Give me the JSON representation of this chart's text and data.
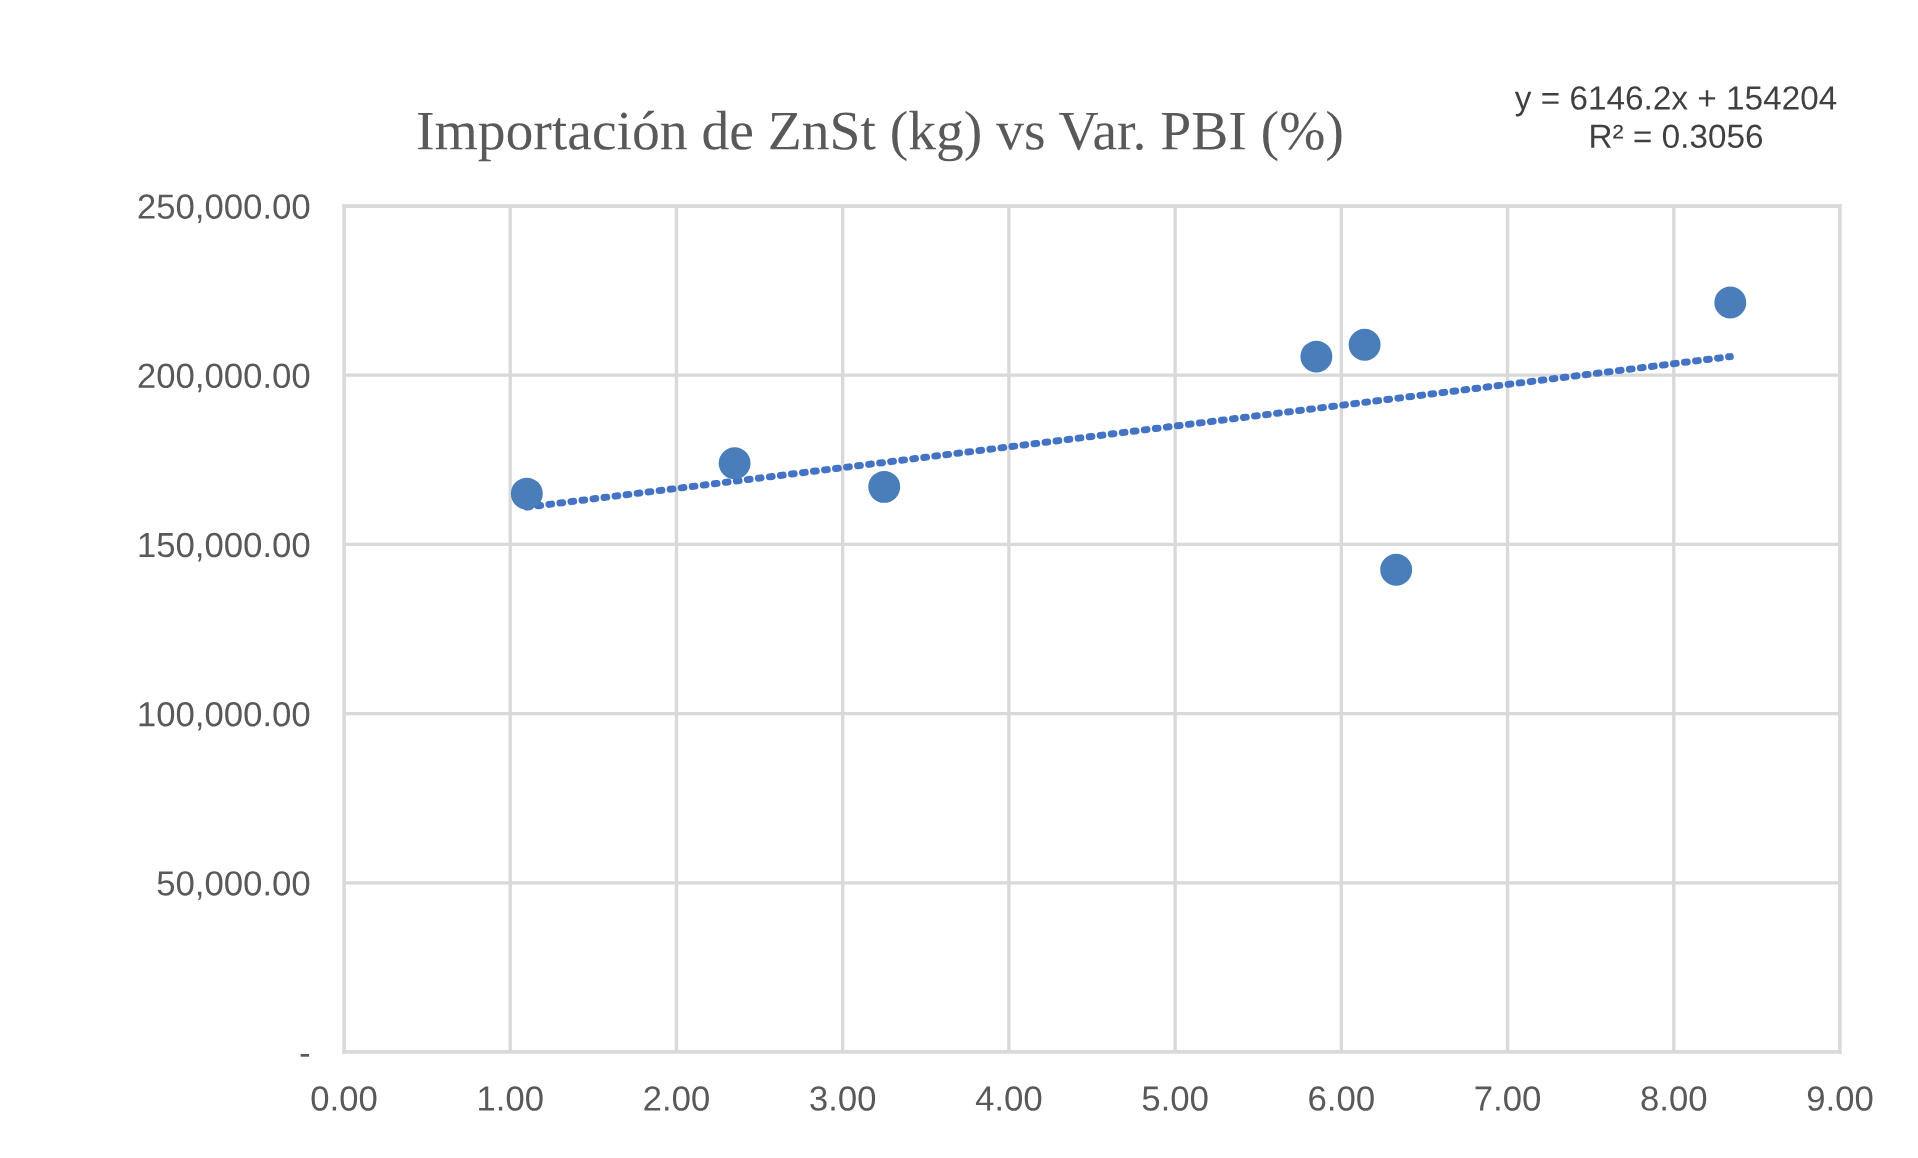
{
  "chart_data": {
    "type": "scatter",
    "title": "Importación de ZnSt (kg) vs Var. PBI (%)",
    "series": [
      {
        "color": "#4a7ebb",
        "marker": "circle",
        "x": [
          1.1,
          2.35,
          3.25,
          5.85,
          6.14,
          6.33,
          8.34
        ],
        "values": [
          165000,
          174000,
          167000,
          205500,
          209000,
          142500,
          221500
        ]
      },
      {
        "type": "line",
        "color": "#4472c4",
        "line_style": "dotted",
        "marker": "none",
        "x": [
          1.1,
          8.34
        ],
        "values": [
          161000,
          205500
        ]
      }
    ],
    "annotations": [
      "y = 6146.2x + 154204\nR² = 0.3056"
    ],
    "xlim": [
      0,
      9
    ],
    "xticks": [
      {
        "value": 0,
        "label": "0.00"
      },
      {
        "value": 1,
        "label": "1.00"
      },
      {
        "value": 2,
        "label": "2.00"
      },
      {
        "value": 3,
        "label": "3.00"
      },
      {
        "value": 4,
        "label": "4.00"
      },
      {
        "value": 5,
        "label": "5.00"
      },
      {
        "value": 6,
        "label": "6.00"
      },
      {
        "value": 7,
        "label": "7.00"
      },
      {
        "value": 8,
        "label": "8.00"
      },
      {
        "value": 9,
        "label": "9.00"
      }
    ],
    "ylim": [
      0,
      250000
    ],
    "yticks": [
      {
        "value": 0,
        "label": "-"
      },
      {
        "value": 50000,
        "label": "50,000.00"
      },
      {
        "value": 100000,
        "label": "100,000.00"
      },
      {
        "value": 150000,
        "label": "150,000.00"
      },
      {
        "value": 200000,
        "label": "200,000.00"
      },
      {
        "value": 250000,
        "label": "250,000.00"
      }
    ],
    "grid": true,
    "legend": false
  }
}
